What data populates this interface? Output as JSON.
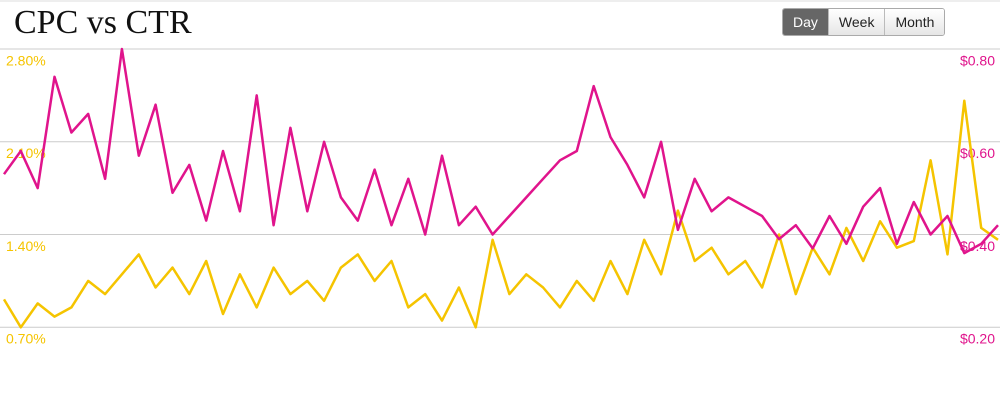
{
  "chart_data": {
    "type": "line",
    "title": "CPC vs CTR",
    "controls": [
      "Day",
      "Week",
      "Month"
    ],
    "categories": [
      null,
      null,
      null,
      null,
      null,
      null,
      null,
      null,
      null,
      null,
      null,
      null,
      null,
      null,
      null,
      null,
      null,
      null,
      null,
      null,
      null,
      null,
      null,
      null,
      null,
      null,
      null,
      null,
      null,
      null,
      null,
      null,
      null,
      null,
      null,
      null,
      null,
      null,
      null,
      null,
      null,
      null,
      null,
      null,
      null,
      null,
      null,
      null,
      null,
      null,
      null,
      null,
      null,
      null,
      null,
      null,
      null,
      null,
      null,
      null
    ],
    "series": [
      {
        "color": "#e0148c",
        "axis": "y2",
        "values": [
          0.53,
          0.58,
          0.5,
          0.74,
          0.62,
          0.66,
          0.52,
          0.8,
          0.57,
          0.68,
          0.49,
          0.55,
          0.43,
          0.58,
          0.45,
          0.7,
          0.42,
          0.63,
          0.45,
          0.6,
          0.48,
          0.43,
          0.54,
          0.42,
          0.52,
          0.4,
          0.57,
          0.42,
          0.46,
          0.4,
          0.44,
          0.48,
          0.52,
          0.56,
          0.58,
          0.72,
          0.61,
          0.55,
          0.48,
          0.6,
          0.41,
          0.52,
          0.45,
          0.48,
          0.46,
          0.44,
          0.39,
          0.42,
          0.37,
          0.44,
          0.38,
          0.46,
          0.5,
          0.38,
          0.47,
          0.4,
          0.44,
          0.36,
          0.38,
          0.42
        ]
      },
      {
        "color": "#f5c400",
        "values": [
          0.91,
          0.7,
          0.88,
          0.78,
          0.85,
          1.05,
          0.95,
          1.1,
          1.25,
          1.0,
          1.15,
          0.95,
          1.2,
          0.8,
          1.1,
          0.85,
          1.15,
          0.95,
          1.05,
          0.9,
          1.15,
          1.25,
          1.05,
          1.2,
          0.85,
          0.95,
          0.75,
          1.0,
          0.7,
          1.36,
          0.95,
          1.1,
          1.0,
          0.85,
          1.05,
          0.9,
          1.2,
          0.95,
          1.36,
          1.1,
          1.58,
          1.2,
          1.3,
          1.1,
          1.2,
          1.0,
          1.4,
          0.95,
          1.3,
          1.1,
          1.45,
          1.2,
          1.5,
          1.3,
          1.35,
          1.96,
          1.25,
          2.41,
          1.45,
          1.36
        ]
      }
    ],
    "ylim": [
      0,
      2.8
    ],
    "yticks": [
      {
        "value": 0.7,
        "label": "0.70%"
      },
      {
        "value": 1.4,
        "label": "1.40%"
      },
      {
        "value": 2.1,
        "label": "2.10%"
      },
      {
        "value": 2.8,
        "label": "2.80%"
      }
    ],
    "y2lim": [
      0,
      0.8
    ],
    "y2ticks": [
      {
        "value": 0.2,
        "label": "$0.20"
      },
      {
        "value": 0.4,
        "label": "$0.40"
      },
      {
        "value": 0.6,
        "label": "$0.60"
      },
      {
        "value": 0.8,
        "label": "$0.80"
      }
    ],
    "grid": true
  }
}
